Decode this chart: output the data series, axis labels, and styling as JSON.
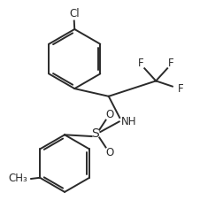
{
  "bg_color": "#ffffff",
  "line_color": "#2a2a2a",
  "line_width": 1.4,
  "font_size": 8.5,
  "label_color": "#2a2a2a",
  "xlim": [
    0,
    10
  ],
  "ylim": [
    0,
    9.4
  ]
}
